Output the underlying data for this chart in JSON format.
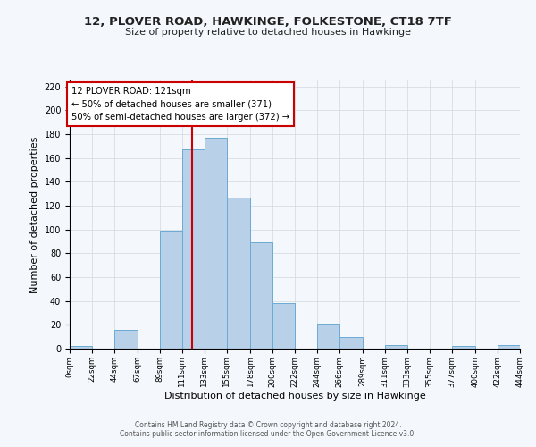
{
  "title": "12, PLOVER ROAD, HAWKINGE, FOLKESTONE, CT18 7TF",
  "subtitle": "Size of property relative to detached houses in Hawkinge",
  "xlabel": "Distribution of detached houses by size in Hawkinge",
  "ylabel": "Number of detached properties",
  "bin_edges": [
    0,
    22,
    44,
    67,
    89,
    111,
    133,
    155,
    178,
    200,
    222,
    244,
    266,
    289,
    311,
    333,
    355,
    377,
    400,
    422,
    444
  ],
  "bin_labels": [
    "0sqm",
    "22sqm",
    "44sqm",
    "67sqm",
    "89sqm",
    "111sqm",
    "133sqm",
    "155sqm",
    "178sqm",
    "200sqm",
    "222sqm",
    "244sqm",
    "266sqm",
    "289sqm",
    "311sqm",
    "333sqm",
    "355sqm",
    "377sqm",
    "400sqm",
    "422sqm",
    "444sqm"
  ],
  "counts": [
    2,
    0,
    16,
    0,
    99,
    167,
    177,
    127,
    89,
    38,
    0,
    21,
    10,
    0,
    3,
    0,
    0,
    2,
    0,
    3
  ],
  "bar_color": "#b8d0e8",
  "bar_edge_color": "#6aaad4",
  "vline_x": 121,
  "vline_color": "#cc0000",
  "annotation_title": "12 PLOVER ROAD: 121sqm",
  "annotation_line1": "← 50% of detached houses are smaller (371)",
  "annotation_line2": "50% of semi-detached houses are larger (372) →",
  "annotation_box_facecolor": "#ffffff",
  "annotation_box_edgecolor": "#cc0000",
  "ylim": [
    0,
    225
  ],
  "yticks": [
    0,
    20,
    40,
    60,
    80,
    100,
    120,
    140,
    160,
    180,
    200,
    220
  ],
  "footer1": "Contains HM Land Registry data © Crown copyright and database right 2024.",
  "footer2": "Contains public sector information licensed under the Open Government Licence v3.0.",
  "bg_color": "#f4f7fb",
  "plot_bg_color": "#f4f7fb",
  "grid_color": "#d0d8e0"
}
